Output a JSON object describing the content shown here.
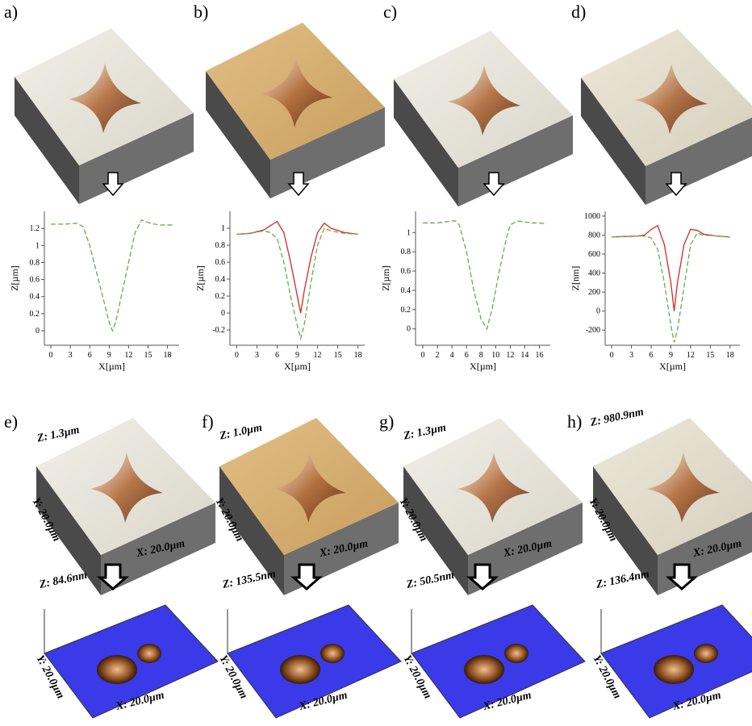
{
  "images": [
    {
      "label": "a)"
    },
    {
      "label": "b)"
    },
    {
      "label": "c)"
    },
    {
      "label": "d)"
    }
  ],
  "surfaces": [
    {
      "label": "e)",
      "z": "Z: 1.3µm",
      "y": "Y: 20.0µm",
      "x": "X: 20.0µm",
      "diff_z": "Z: 84.6nm",
      "diff_y": "Y: 20.0µm",
      "diff_x": "X: 20.0µm"
    },
    {
      "label": "f)",
      "z": "Z: 1.0µm",
      "y": "Y: 20.0µm",
      "x": "X: 20.0µm",
      "diff_z": "Z: 135.5nm",
      "diff_y": "Y: 20.0µm",
      "diff_x": "X: 20.0µm"
    },
    {
      "label": "g)",
      "z": "Z: 1.3µm",
      "y": "Y: 20.0µm",
      "x": "X: 20.0µm",
      "diff_z": "Z: 50.5nm",
      "diff_y": "Y: 20.0µm",
      "diff_x": "X: 20.0µm"
    },
    {
      "label": "h)",
      "z": "Z: 980.9nm",
      "y": "Y: 20.0µm",
      "x": "X: 20.0µm",
      "diff_z": "Z: 136.4nm",
      "diff_y": "Y: 20.0µm",
      "diff_x": "X: 20.0µm"
    }
  ],
  "chart_data": [
    {
      "type": "line",
      "x_label": "X[µm]",
      "y_label": "Z[µm]",
      "xlim": [
        -1,
        19.8
      ],
      "ylim": [
        -0.17,
        1.4
      ],
      "xticks": [
        0,
        3,
        6,
        9,
        12,
        15,
        18
      ],
      "yticks": [
        0,
        0.2,
        0.4,
        0.6,
        0.8,
        1,
        1.2
      ],
      "x": [
        0,
        2,
        4,
        5,
        6,
        7,
        8,
        9,
        9.5,
        10,
        11,
        12,
        13,
        14,
        15,
        16,
        17,
        18,
        19
      ],
      "series": [
        {
          "color": "#6aaa4a",
          "linestyle": "dashed",
          "values": [
            1.25,
            1.25,
            1.26,
            1.22,
            1.0,
            0.7,
            0.4,
            0.1,
            0.0,
            0.1,
            0.45,
            0.8,
            1.15,
            1.3,
            1.27,
            1.25,
            1.24,
            1.24,
            1.24
          ]
        }
      ]
    },
    {
      "type": "line",
      "x_label": "X[µm]",
      "y_label": "Z[µm]",
      "xlim": [
        -1,
        19
      ],
      "ylim": [
        -0.38,
        1.2
      ],
      "xticks": [
        0,
        3,
        6,
        9,
        12,
        15,
        18
      ],
      "yticks": [
        -0.2,
        0,
        0.2,
        0.4,
        0.6,
        0.8,
        1
      ],
      "x": [
        0,
        2,
        4,
        5,
        6,
        7,
        8,
        9,
        9.5,
        10,
        11,
        12,
        13,
        14,
        16,
        18
      ],
      "series": [
        {
          "color": "#d62728",
          "linestyle": "solid",
          "values": [
            0.93,
            0.94,
            0.98,
            1.03,
            1.08,
            0.95,
            0.6,
            0.2,
            0.0,
            0.25,
            0.65,
            0.95,
            1.06,
            1.0,
            0.95,
            0.93
          ]
        },
        {
          "color": "#6aaa4a",
          "linestyle": "dashed",
          "values": [
            0.93,
            0.94,
            0.97,
            0.95,
            0.88,
            0.6,
            0.2,
            -0.15,
            -0.3,
            -0.15,
            0.35,
            0.8,
            1.0,
            0.97,
            0.94,
            0.93
          ]
        }
      ]
    },
    {
      "type": "line",
      "x_label": "X[µm]",
      "y_label": "Z[µm]",
      "xlim": [
        -1,
        17.5
      ],
      "ylim": [
        -0.17,
        1.22
      ],
      "xticks": [
        0,
        2,
        4,
        6,
        8,
        10,
        12,
        14,
        16
      ],
      "yticks": [
        0,
        0.2,
        0.4,
        0.6,
        0.8,
        1
      ],
      "x": [
        0,
        2,
        4,
        4.5,
        5,
        6,
        7,
        8,
        8.8,
        9.5,
        10.5,
        11.5,
        12,
        13,
        14,
        15,
        16,
        17
      ],
      "series": [
        {
          "color": "#6aaa4a",
          "linestyle": "dashed",
          "values": [
            1.1,
            1.1,
            1.12,
            1.12,
            1.08,
            0.8,
            0.4,
            0.1,
            0.0,
            0.2,
            0.6,
            0.95,
            1.08,
            1.12,
            1.11,
            1.1,
            1.1,
            1.09
          ]
        }
      ]
    },
    {
      "type": "line",
      "x_label": "X[µm]",
      "y_label": "Z[nm]",
      "xlim": [
        -1,
        19.5
      ],
      "ylim": [
        -360,
        1050
      ],
      "xticks": [
        0,
        3,
        6,
        9,
        12,
        15,
        18
      ],
      "yticks": [
        -200,
        0,
        200,
        400,
        600,
        800,
        1000
      ],
      "x": [
        0,
        2,
        4,
        5,
        6,
        7,
        8,
        9,
        9.5,
        10,
        11,
        12,
        13,
        14,
        16,
        18
      ],
      "series": [
        {
          "color": "#d62728",
          "linestyle": "solid",
          "values": [
            780,
            785,
            790,
            800,
            860,
            900,
            700,
            300,
            0,
            300,
            700,
            860,
            850,
            810,
            790,
            780
          ]
        },
        {
          "color": "#6aaa4a",
          "linestyle": "dashed",
          "values": [
            780,
            785,
            790,
            790,
            770,
            650,
            300,
            -150,
            -330,
            -200,
            250,
            700,
            820,
            800,
            790,
            780
          ]
        }
      ]
    }
  ]
}
